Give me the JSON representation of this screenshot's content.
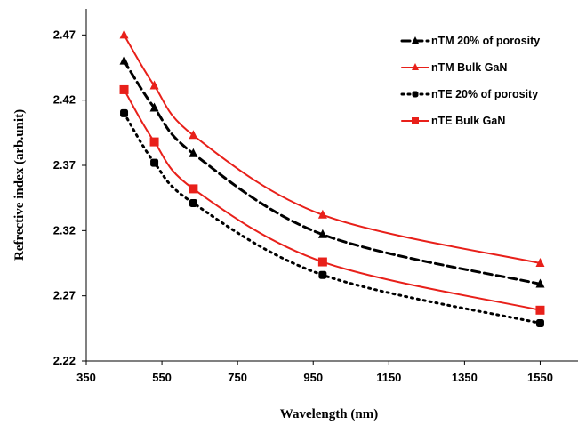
{
  "chart_data": {
    "type": "line",
    "xlabel": "Wavelength (nm)",
    "ylabel": "Refrective index (arb.unit)",
    "xlim": [
      350,
      1650
    ],
    "ylim": [
      2.22,
      2.49
    ],
    "xticks": [
      "350",
      "550",
      "750",
      "950",
      "1150",
      "1350",
      "1550"
    ],
    "yticks": [
      "2.22",
      "2.27",
      "2.32",
      "2.37",
      "2.42",
      "2.47"
    ],
    "legend_position": "top-right",
    "grid": false,
    "series": [
      {
        "name": "nTM 20% of porosity",
        "color": "#000000",
        "line": "dashed",
        "marker": "triangle",
        "x": [
          450,
          530,
          633,
          975,
          1550
        ],
        "y": [
          2.45,
          2.414,
          2.379,
          2.317,
          2.279
        ]
      },
      {
        "name": "nTM Bulk GaN",
        "color": "#e8201a",
        "line": "solid",
        "marker": "triangle",
        "x": [
          450,
          530,
          633,
          975,
          1550
        ],
        "y": [
          2.47,
          2.431,
          2.393,
          2.332,
          2.295
        ]
      },
      {
        "name": "nTE 20% of porosity",
        "color": "#000000",
        "line": "dotted",
        "marker": "circle",
        "x": [
          450,
          530,
          633,
          975,
          1550
        ],
        "y": [
          2.41,
          2.372,
          2.341,
          2.286,
          2.249
        ]
      },
      {
        "name": "nTE Bulk GaN",
        "color": "#e8201a",
        "line": "solid",
        "marker": "square",
        "x": [
          450,
          530,
          633,
          975,
          1550
        ],
        "y": [
          2.428,
          2.388,
          2.352,
          2.296,
          2.259
        ]
      }
    ]
  }
}
